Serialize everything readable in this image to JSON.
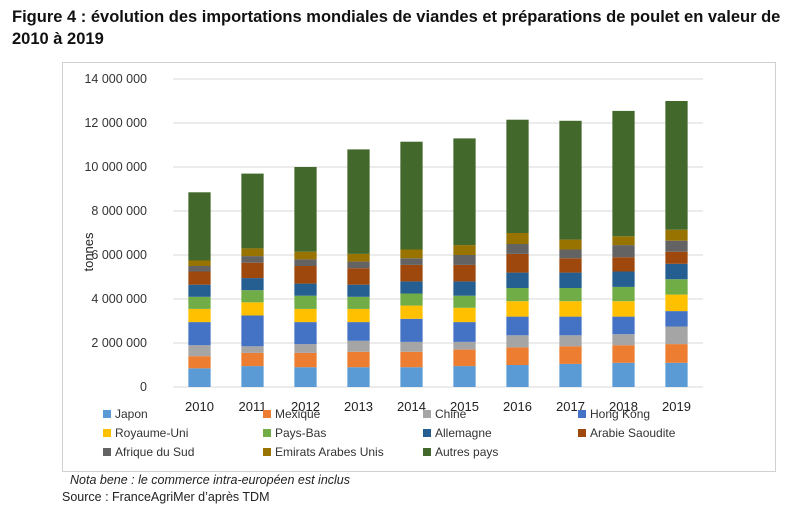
{
  "title": "Figure 4 : évolution des importations mondiales de viandes et préparations de poulet en valeur de 2010 à 2019",
  "note": "Nota bene : le commerce intra-européen est inclus",
  "source": "Source : FranceAgriMer d’après TDM",
  "chart_data": {
    "type": "bar",
    "stacked": true,
    "ylabel": "tonnes",
    "xlabel": "",
    "ylim": [
      0,
      14000000
    ],
    "yticks": [
      0,
      2000000,
      4000000,
      6000000,
      8000000,
      10000000,
      12000000,
      14000000
    ],
    "ytick_labels": [
      "0",
      "2 000 000",
      "4 000 000",
      "6 000 000",
      "8 000 000",
      "10 000 000",
      "12 000 000",
      "14 000 000"
    ],
    "grid": true,
    "legend_position": "bottom",
    "categories": [
      "2010",
      "2011",
      "2012",
      "2013",
      "2014",
      "2015",
      "2016",
      "2017",
      "2018",
      "2019"
    ],
    "series": [
      {
        "name": "Japon",
        "color": "#5b9bd5",
        "values": [
          850000,
          950000,
          900000,
          900000,
          900000,
          950000,
          1000000,
          1050000,
          1100000,
          1100000
        ]
      },
      {
        "name": "Mexique",
        "color": "#ed7d31",
        "values": [
          550000,
          600000,
          650000,
          700000,
          700000,
          750000,
          800000,
          800000,
          800000,
          850000
        ]
      },
      {
        "name": "Chine",
        "color": "#a5a5a5",
        "values": [
          500000,
          300000,
          400000,
          500000,
          450000,
          350000,
          550000,
          500000,
          500000,
          800000
        ]
      },
      {
        "name": "Hong Kong",
        "color": "#4472c4",
        "values": [
          1050000,
          1400000,
          1000000,
          850000,
          1050000,
          900000,
          850000,
          850000,
          800000,
          700000
        ]
      },
      {
        "name": "Royaume-Uni",
        "color": "#ffc000",
        "values": [
          600000,
          600000,
          600000,
          600000,
          600000,
          650000,
          700000,
          700000,
          700000,
          750000
        ]
      },
      {
        "name": "Pays-Bas",
        "color": "#70ad47",
        "values": [
          550000,
          550000,
          600000,
          550000,
          550000,
          550000,
          600000,
          600000,
          650000,
          700000
        ]
      },
      {
        "name": "Allemagne",
        "color": "#255e91",
        "values": [
          550000,
          550000,
          550000,
          550000,
          550000,
          650000,
          700000,
          700000,
          700000,
          700000
        ]
      },
      {
        "name": "Arabie Saoudite",
        "color": "#9e480e",
        "values": [
          600000,
          700000,
          800000,
          750000,
          750000,
          750000,
          850000,
          650000,
          650000,
          550000
        ]
      },
      {
        "name": "Afrique du Sud",
        "color": "#636363",
        "values": [
          250000,
          300000,
          300000,
          300000,
          300000,
          450000,
          450000,
          400000,
          550000,
          500000
        ]
      },
      {
        "name": "Emirats Arabes Unis",
        "color": "#997300",
        "values": [
          250000,
          350000,
          350000,
          350000,
          400000,
          450000,
          500000,
          450000,
          400000,
          500000
        ]
      },
      {
        "name": "Autres pays",
        "color": "#43682b",
        "values": [
          3100000,
          3400000,
          3850000,
          4750000,
          4900000,
          4850000,
          5150000,
          5400000,
          5700000,
          5850000
        ]
      }
    ]
  }
}
